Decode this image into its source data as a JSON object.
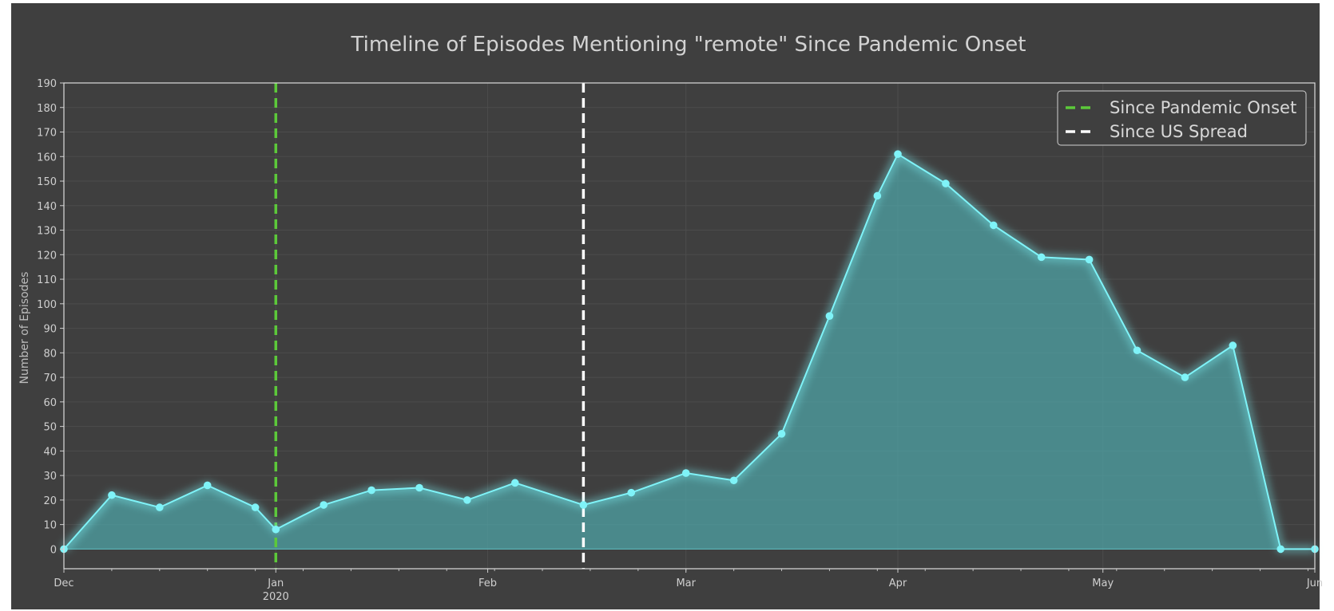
{
  "chart_data": {
    "type": "area",
    "title": "Timeline of Episodes Mentioning \"remote\" Since Pandemic Onset",
    "xlabel": "",
    "ylabel": "Number of Episodes",
    "x_unit": "date",
    "xlim": [
      "2019-12-01",
      "2020-06-01"
    ],
    "ylim": [
      -8,
      190
    ],
    "yticks": [
      0,
      10,
      20,
      30,
      40,
      50,
      60,
      70,
      80,
      90,
      100,
      110,
      120,
      130,
      140,
      150,
      160,
      170,
      180,
      190
    ],
    "xticks": [
      {
        "date": "2019-12-01",
        "label": "Dec",
        "sublabel": ""
      },
      {
        "date": "2020-01-01",
        "label": "Jan",
        "sublabel": "2020"
      },
      {
        "date": "2020-02-01",
        "label": "Feb",
        "sublabel": ""
      },
      {
        "date": "2020-03-01",
        "label": "Mar",
        "sublabel": ""
      },
      {
        "date": "2020-04-01",
        "label": "Apr",
        "sublabel": ""
      },
      {
        "date": "2020-05-01",
        "label": "May",
        "sublabel": ""
      },
      {
        "date": "2020-06-01",
        "label": "Jun",
        "sublabel": ""
      }
    ],
    "grid": true,
    "legend_position": "top-right",
    "colors": {
      "series": "#7ff3f8",
      "fill": "#4fa3a5",
      "onset_line": "#5cc93a",
      "us_line": "#ffffff",
      "background": "#3f3f3f"
    },
    "series": [
      {
        "x": [
          "2019-12-01",
          "2019-12-08",
          "2019-12-15",
          "2019-12-22",
          "2019-12-29",
          "2020-01-01",
          "2020-01-08",
          "2020-01-15",
          "2020-01-22",
          "2020-01-29",
          "2020-02-05",
          "2020-02-15",
          "2020-02-22",
          "2020-03-01",
          "2020-03-08",
          "2020-03-15",
          "2020-03-22",
          "2020-03-29",
          "2020-04-01",
          "2020-04-08",
          "2020-04-15",
          "2020-04-22",
          "2020-04-29",
          "2020-05-06",
          "2020-05-13",
          "2020-05-20",
          "2020-05-27",
          "2020-06-01"
        ],
        "values": [
          0,
          22,
          17,
          26,
          17,
          8,
          18,
          24,
          25,
          20,
          27,
          18,
          23,
          31,
          28,
          47,
          95,
          144,
          161,
          149,
          132,
          119,
          118,
          81,
          70,
          83,
          0,
          0
        ]
      }
    ],
    "vlines": [
      {
        "name": "Since Pandemic Onset",
        "date": "2020-01-01",
        "style": "dashed"
      },
      {
        "name": "Since US Spread",
        "date": "2020-02-15",
        "style": "dashed"
      }
    ]
  }
}
